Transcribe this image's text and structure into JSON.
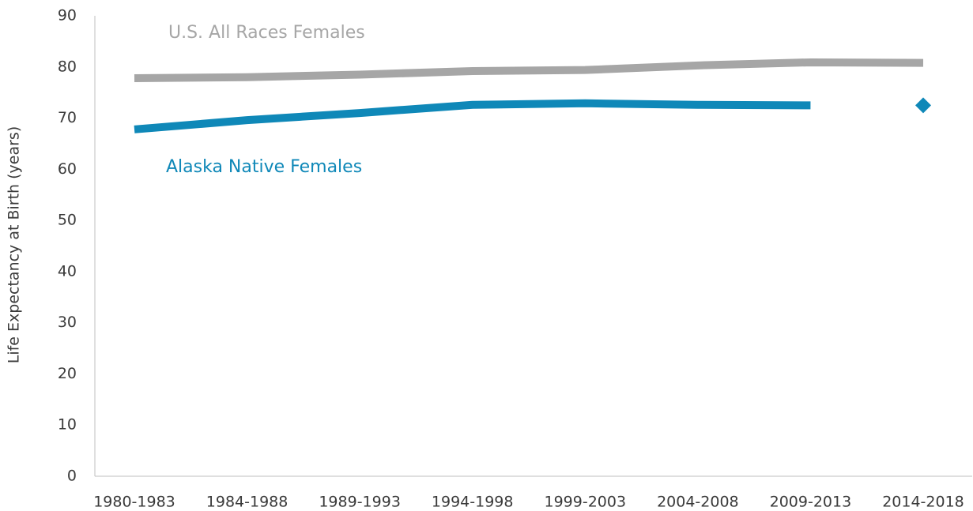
{
  "chart_data": {
    "type": "line",
    "y_label": "Life Expectancy at Birth (years)",
    "categories": [
      "1980-1983",
      "1984-1988",
      "1989-1993",
      "1994-1998",
      "1999-2003",
      "2004-2008",
      "2009-2013",
      "2014-2018"
    ],
    "series": [
      {
        "name": "U.S. All Races Females",
        "color": "#a6a6a6",
        "values": [
          77.8,
          78.0,
          78.5,
          79.2,
          79.4,
          80.3,
          80.9,
          80.8
        ]
      },
      {
        "name": "Alaska Native Females",
        "color": "#0f88b8",
        "values": [
          67.8,
          69.6,
          71.0,
          72.6,
          72.9,
          72.6,
          72.5,
          null
        ]
      },
      {
        "color": "#0f88b8",
        "marker": "diamond",
        "values": [
          null,
          null,
          null,
          null,
          null,
          null,
          null,
          72.5
        ]
      }
    ],
    "ylim": [
      0,
      90
    ],
    "yticks": [
      0,
      10,
      20,
      30,
      40,
      50,
      60,
      70,
      80,
      90
    ],
    "grid": false
  }
}
